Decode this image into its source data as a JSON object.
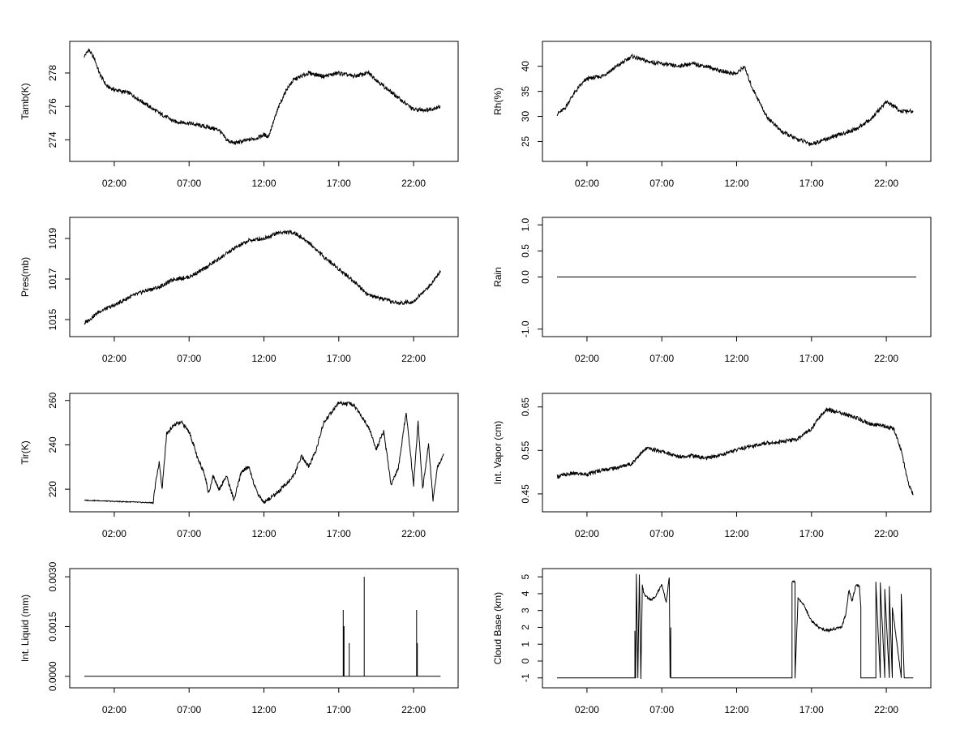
{
  "chart_data": [
    {
      "type": "line",
      "ylabel": "Tamb(K)",
      "x_ticks": [
        "02:00",
        "07:00",
        "12:00",
        "17:00",
        "22:00"
      ],
      "xlim": [
        0,
        24
      ],
      "ylim": [
        273,
        279.6
      ],
      "y_ticks": [
        "274",
        "276",
        "278"
      ],
      "series": [
        {
          "x": [
            0,
            0.3,
            0.7,
            1,
            1.5,
            2,
            3,
            4,
            5,
            6,
            7,
            8,
            9,
            9.5,
            10,
            11,
            11.5,
            12,
            12.3,
            13,
            13.5,
            14,
            15,
            16,
            17,
            18,
            19,
            20,
            21,
            22,
            23,
            23.8
          ],
          "values": [
            279,
            279.4,
            278.8,
            278,
            277.2,
            277,
            276.8,
            276.2,
            275.6,
            275.1,
            275,
            274.8,
            274.6,
            274,
            273.8,
            274,
            274.1,
            274.3,
            274.2,
            276,
            277,
            277.6,
            278,
            277.8,
            278,
            277.8,
            278,
            277.2,
            276.5,
            275.8,
            275.8,
            276
          ]
        }
      ]
    },
    {
      "type": "line",
      "ylabel": "Rh(%)",
      "x_ticks": [
        "02:00",
        "07:00",
        "12:00",
        "17:00",
        "22:00"
      ],
      "xlim": [
        0,
        24
      ],
      "ylim": [
        22,
        44
      ],
      "y_ticks": [
        "25",
        "30",
        "35",
        "40"
      ],
      "series": [
        {
          "x": [
            0,
            0.5,
            1,
            1.5,
            2,
            3,
            4,
            5,
            6,
            7,
            8,
            9,
            10,
            11,
            12,
            12.5,
            13,
            14,
            15,
            16,
            17,
            18,
            19,
            20,
            21,
            22,
            23,
            23.8
          ],
          "values": [
            30.5,
            31.5,
            34,
            36,
            37.5,
            38,
            40,
            42,
            41,
            40.5,
            40,
            40.5,
            40,
            39,
            38.5,
            40,
            36,
            30,
            27,
            25.5,
            24.5,
            25.5,
            26.5,
            27.5,
            29.5,
            33,
            31,
            31
          ]
        }
      ]
    },
    {
      "type": "line",
      "ylabel": "Pres(mb)",
      "x_ticks": [
        "02:00",
        "07:00",
        "12:00",
        "17:00",
        "22:00"
      ],
      "xlim": [
        0,
        24
      ],
      "ylim": [
        1014.4,
        1019.8
      ],
      "y_ticks": [
        "1015",
        "1017",
        "1019"
      ],
      "series": [
        {
          "x": [
            0,
            1,
            2,
            3,
            4,
            5,
            6,
            7,
            8,
            9,
            10,
            11,
            12,
            13,
            14,
            15,
            16,
            17,
            18,
            19,
            20,
            21,
            22,
            23,
            23.8
          ],
          "values": [
            1014.8,
            1015.4,
            1015.7,
            1016.1,
            1016.4,
            1016.6,
            1017.0,
            1017.1,
            1017.5,
            1018.0,
            1018.5,
            1018.9,
            1019.0,
            1019.3,
            1019.3,
            1018.8,
            1018.1,
            1017.5,
            1016.9,
            1016.2,
            1016.0,
            1015.8,
            1015.9,
            1016.6,
            1017.4
          ]
        }
      ]
    },
    {
      "type": "line",
      "ylabel": "Rain",
      "x_ticks": [
        "02:00",
        "07:00",
        "12:00",
        "17:00",
        "22:00"
      ],
      "xlim": [
        0,
        24
      ],
      "ylim": [
        -1.05,
        1.05
      ],
      "y_ticks": [
        "-1.0",
        "0.0",
        "0.5",
        "1.0"
      ],
      "series": [
        {
          "x": [
            0,
            24
          ],
          "values": [
            0,
            0
          ]
        }
      ]
    },
    {
      "type": "line",
      "ylabel": "Tir(K)",
      "x_ticks": [
        "02:00",
        "07:00",
        "12:00",
        "17:00",
        "22:00"
      ],
      "xlim": [
        0,
        24
      ],
      "ylim": [
        212,
        261
      ],
      "y_ticks": [
        "220",
        "240",
        "260"
      ],
      "series": [
        {
          "x": [
            0,
            1,
            2,
            3,
            4,
            4.6,
            4.8,
            5.0,
            5.2,
            5.5,
            6,
            6.5,
            7,
            7.3,
            7.6,
            8,
            8.3,
            8.6,
            9,
            9.5,
            10,
            10.5,
            11,
            11.5,
            12,
            13,
            14,
            14.5,
            15,
            15.5,
            16,
            17,
            18,
            19,
            19.5,
            20,
            20.5,
            21,
            21.5,
            22,
            22.3,
            22.6,
            23,
            23.3,
            23.6,
            24
          ],
          "values": [
            215,
            214.8,
            214.5,
            214.3,
            214,
            213.9,
            225,
            232,
            220,
            245,
            249,
            250,
            246,
            240,
            233,
            228,
            218,
            226,
            220,
            226,
            215,
            228,
            230,
            219,
            214,
            219,
            226,
            235,
            230,
            238,
            250,
            259,
            258,
            248,
            238,
            246,
            222,
            230,
            255,
            222,
            250,
            220,
            240,
            215,
            230,
            236
          ]
        }
      ]
    },
    {
      "type": "line",
      "ylabel": "Int. Vapor (cm)",
      "x_ticks": [
        "02:00",
        "07:00",
        "12:00",
        "17:00",
        "22:00"
      ],
      "xlim": [
        0,
        24
      ],
      "ylim": [
        0.42,
        0.67
      ],
      "y_ticks": [
        "0.45",
        "0.55",
        "0.65"
      ],
      "series": [
        {
          "x": [
            0,
            1,
            2,
            3,
            4,
            5,
            5.5,
            6,
            7,
            8,
            9,
            10,
            11,
            12,
            13,
            14,
            15,
            16,
            17,
            17.5,
            18,
            19,
            20,
            21,
            22,
            22.5,
            23,
            23.5,
            23.8
          ],
          "values": [
            0.49,
            0.497,
            0.495,
            0.505,
            0.51,
            0.52,
            0.54,
            0.555,
            0.548,
            0.536,
            0.538,
            0.532,
            0.54,
            0.552,
            0.56,
            0.567,
            0.57,
            0.575,
            0.6,
            0.625,
            0.645,
            0.635,
            0.625,
            0.61,
            0.605,
            0.6,
            0.55,
            0.47,
            0.45
          ]
        }
      ]
    },
    {
      "type": "line",
      "ylabel": "Int. Liquid (mm)",
      "x_ticks": [
        "02:00",
        "07:00",
        "12:00",
        "17:00",
        "22:00"
      ],
      "xlim": [
        0,
        24
      ],
      "ylim": [
        -0.0002,
        0.0031
      ],
      "y_ticks": [
        "0.0000",
        "0.0015",
        "0.0030"
      ],
      "series": [
        {
          "x": [
            0,
            17.3,
            17.3,
            17.3,
            17.3,
            17.35,
            17.35,
            17.35,
            17.7,
            17.7,
            17.7,
            18.7,
            18.7,
            18.7,
            22.2,
            22.2,
            22.2,
            22.25,
            22.25,
            22.25,
            23.8
          ],
          "values": [
            0,
            0,
            0.002,
            0,
            0.0015,
            0.0015,
            0.001,
            0,
            0,
            0.001,
            0,
            0,
            0.003,
            0,
            0,
            0.002,
            0,
            0,
            0.001,
            0,
            0
          ]
        }
      ]
    },
    {
      "type": "line",
      "ylabel": "Cloud Base (km)",
      "x_ticks": [
        "02:00",
        "07:00",
        "12:00",
        "17:00",
        "22:00"
      ],
      "xlim": [
        0,
        24
      ],
      "ylim": [
        -1.3,
        5.2
      ],
      "y_ticks": [
        "-1",
        "0",
        "1",
        "2",
        "3",
        "4",
        "5"
      ],
      "series": [
        {
          "x": [
            0,
            5.2,
            5.2,
            5.25,
            5.3,
            5.4,
            5.5,
            5.6,
            5.7,
            5.8,
            6.0,
            6.3,
            6.6,
            7.0,
            7.3,
            7.5,
            7.55,
            7.6,
            7.6,
            15.7,
            15.7,
            15.9,
            15.9,
            16.1,
            16.5,
            17.0,
            17.5,
            18.0,
            18.5,
            19.0,
            19.3,
            19.5,
            19.7,
            20.0,
            20.2,
            20.3,
            20.3,
            21.3,
            21.3,
            21.6,
            21.6,
            21.9,
            21.9,
            22.2,
            22.2,
            22.4,
            22.4,
            23.0,
            23.0,
            23.2,
            23.8
          ],
          "values": [
            -1,
            -1,
            1.8,
            -1,
            5.1,
            -1,
            5.2,
            -1,
            4.5,
            4.0,
            3.8,
            3.6,
            3.9,
            4.5,
            3.5,
            5.0,
            -1,
            2,
            -1,
            -1,
            4.7,
            4.7,
            -1,
            3.7,
            3.3,
            2.4,
            2.0,
            1.8,
            1.9,
            2.0,
            2.8,
            4.2,
            3.5,
            4.6,
            4.4,
            3.2,
            -1,
            -1,
            4.7,
            -1,
            4.6,
            -1,
            4.2,
            -1,
            4.4,
            -1,
            3.2,
            -1,
            4.0,
            -1,
            -1
          ]
        }
      ]
    }
  ]
}
